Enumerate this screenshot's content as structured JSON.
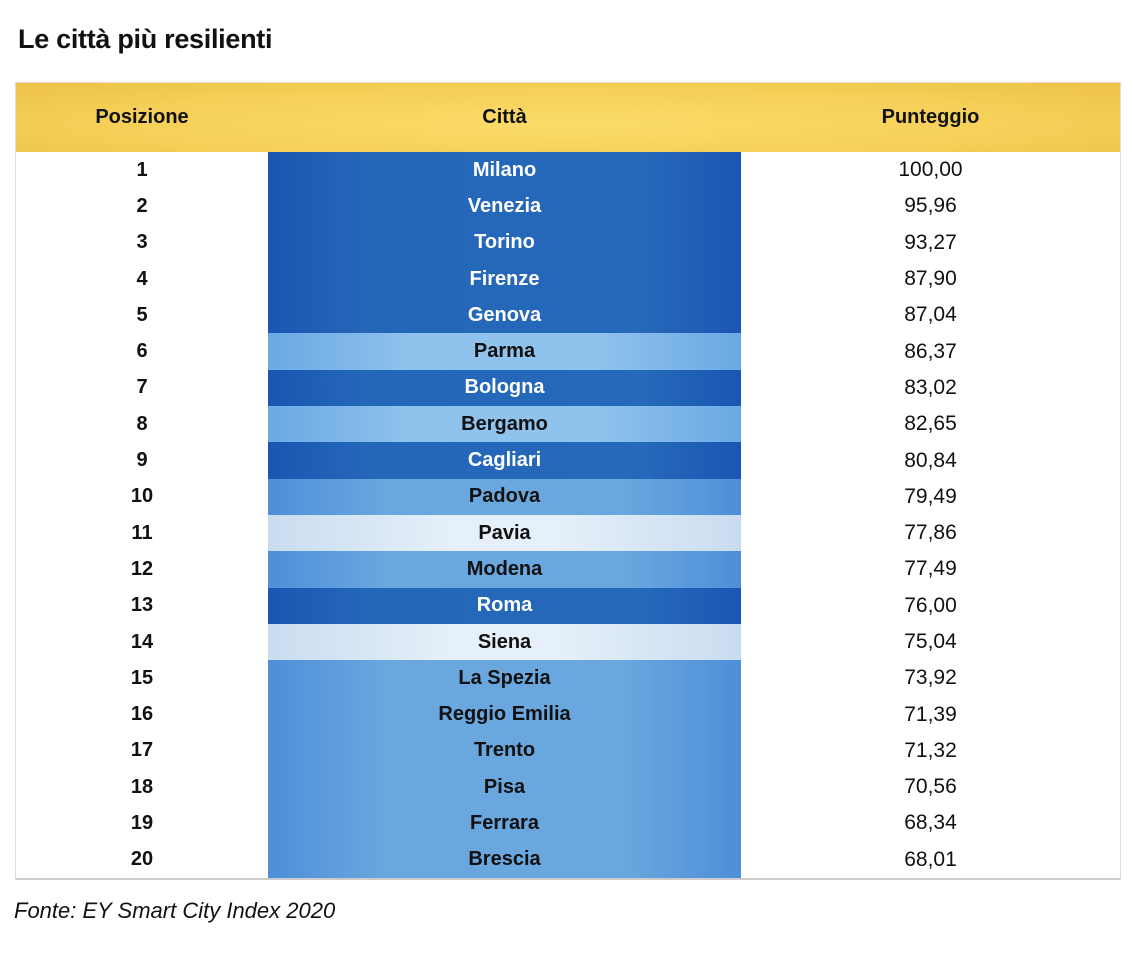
{
  "title": "Le città più resilienti",
  "source": "Fonte: EY Smart City Index 2020",
  "colors": {
    "header": "#f5cf57",
    "dark": "#2466b8",
    "medium": "#6aa7df",
    "light": "#8fc2ed",
    "pale": "#e6f0fa"
  },
  "chart_data": {
    "type": "table",
    "title": "Le città più resilienti",
    "columns": [
      "Posizione",
      "Città",
      "Punteggio"
    ],
    "rows": [
      {
        "pos": "1",
        "city": "Milano",
        "score": "100,00",
        "tone": "dark"
      },
      {
        "pos": "2",
        "city": "Venezia",
        "score": "95,96",
        "tone": "dark"
      },
      {
        "pos": "3",
        "city": "Torino",
        "score": "93,27",
        "tone": "dark"
      },
      {
        "pos": "4",
        "city": "Firenze",
        "score": "87,90",
        "tone": "dark"
      },
      {
        "pos": "5",
        "city": "Genova",
        "score": "87,04",
        "tone": "dark"
      },
      {
        "pos": "6",
        "city": "Parma",
        "score": "86,37",
        "tone": "light"
      },
      {
        "pos": "7",
        "city": "Bologna",
        "score": "83,02",
        "tone": "dark"
      },
      {
        "pos": "8",
        "city": "Bergamo",
        "score": "82,65",
        "tone": "light"
      },
      {
        "pos": "9",
        "city": "Cagliari",
        "score": "80,84",
        "tone": "dark"
      },
      {
        "pos": "10",
        "city": "Padova",
        "score": "79,49",
        "tone": "medium"
      },
      {
        "pos": "11",
        "city": "Pavia",
        "score": "77,86",
        "tone": "pale"
      },
      {
        "pos": "12",
        "city": "Modena",
        "score": "77,49",
        "tone": "medium"
      },
      {
        "pos": "13",
        "city": "Roma",
        "score": "76,00",
        "tone": "dark"
      },
      {
        "pos": "14",
        "city": "Siena",
        "score": "75,04",
        "tone": "pale"
      },
      {
        "pos": "15",
        "city": "La Spezia",
        "score": "73,92",
        "tone": "medium"
      },
      {
        "pos": "16",
        "city": "Reggio Emilia",
        "score": "71,39",
        "tone": "medium"
      },
      {
        "pos": "17",
        "city": "Trento",
        "score": "71,32",
        "tone": "medium"
      },
      {
        "pos": "18",
        "city": "Pisa",
        "score": "70,56",
        "tone": "medium"
      },
      {
        "pos": "19",
        "city": "Ferrara",
        "score": "68,34",
        "tone": "medium"
      },
      {
        "pos": "20",
        "city": "Brescia",
        "score": "68,01",
        "tone": "medium"
      }
    ]
  }
}
